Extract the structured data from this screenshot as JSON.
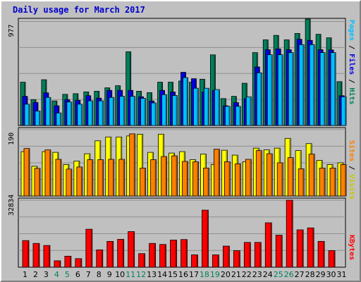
{
  "title": "Daily usage for March 2017",
  "colors": {
    "hits": "#00805c",
    "files": "#0000e6",
    "pages": "#00c0ff",
    "visits": "#ffff00",
    "sites": "#ff8000",
    "kbytes": "#ff0000",
    "weekday_label": "#000000",
    "weekend_label": "#00805c"
  },
  "chart_data": [
    {
      "type": "bar",
      "panel": "hits-files-pages",
      "categories": [
        "1",
        "2",
        "3",
        "4",
        "5",
        "6",
        "7",
        "8",
        "9",
        "10",
        "11",
        "12",
        "13",
        "14",
        "15",
        "16",
        "17",
        "18",
        "19",
        "20",
        "21",
        "22",
        "23",
        "24",
        "25",
        "26",
        "27",
        "28",
        "29",
        "30",
        "31"
      ],
      "weekend": [
        "4",
        "5",
        "11",
        "12",
        "18",
        "19",
        "25",
        "26"
      ],
      "ylim": [
        0,
        977
      ],
      "y_tick_label": "977",
      "series": [
        {
          "name": "Hits",
          "values": [
            407,
            243,
            430,
            231,
            293,
            299,
            316,
            322,
            354,
            374,
            693,
            322,
            309,
            407,
            407,
            418,
            407,
            435,
            664,
            253,
            274,
            397,
            685,
            805,
            847,
            805,
            865,
            1000,
            857,
            824,
            412
          ]
        },
        {
          "name": "Files",
          "values": [
            274,
            217,
            307,
            185,
            243,
            237,
            280,
            257,
            330,
            330,
            330,
            270,
            230,
            330,
            315,
            500,
            440,
            315,
            330,
            185,
            215,
            253,
            550,
            712,
            720,
            712,
            810,
            800,
            712,
            710,
            280
          ]
        },
        {
          "name": "Pages",
          "values": [
            200,
            136,
            264,
            118,
            221,
            200,
            232,
            231,
            264,
            274,
            274,
            255,
            212,
            290,
            282,
            450,
            350,
            350,
            338,
            180,
            180,
            270,
            495,
            665,
            665,
            685,
            760,
            760,
            685,
            685,
            270
          ]
        }
      ]
    },
    {
      "type": "bar",
      "panel": "visits-sites",
      "categories": [
        "1",
        "2",
        "3",
        "4",
        "5",
        "6",
        "7",
        "8",
        "9",
        "10",
        "11",
        "12",
        "13",
        "14",
        "15",
        "16",
        "17",
        "18",
        "19",
        "20",
        "21",
        "22",
        "23",
        "24",
        "25",
        "26",
        "27",
        "28",
        "29",
        "30",
        "31"
      ],
      "ylim": [
        0,
        190
      ],
      "y_tick_label": "190",
      "series": [
        {
          "name": "Visits",
          "values": [
            127,
            85,
            127,
            125,
            90,
            100,
            121,
            158,
            169,
            169,
            172,
            177,
            125,
            177,
            123,
            127,
            104,
            120,
            90,
            131,
            117,
            98,
            137,
            132,
            137,
            165,
            130,
            150,
            102,
            90,
            95
          ]
        },
        {
          "name": "Sites",
          "values": [
            136,
            79,
            132,
            105,
            77,
            83,
            104,
            104,
            105,
            105,
            178,
            80,
            104,
            113,
            115,
            99,
            98,
            80,
            134,
            98,
            92,
            105,
            130,
            121,
            95,
            110,
            78,
            120,
            80,
            80,
            90
          ]
        }
      ]
    },
    {
      "type": "bar",
      "panel": "kbytes",
      "categories": [
        "1",
        "2",
        "3",
        "4",
        "5",
        "6",
        "7",
        "8",
        "9",
        "10",
        "11",
        "12",
        "13",
        "14",
        "15",
        "16",
        "17",
        "18",
        "19",
        "20",
        "21",
        "22",
        "23",
        "24",
        "25",
        "26",
        "27",
        "28",
        "29",
        "30",
        "31"
      ],
      "ylim": [
        0,
        32834
      ],
      "y_tick_label": "32834",
      "series": [
        {
          "name": "KBytes",
          "values": [
            13050,
            11650,
            10650,
            3150,
            5400,
            4200,
            18600,
            8500,
            12650,
            13650,
            17450,
            6650,
            11650,
            11150,
            13300,
            13550,
            6050,
            27950,
            6050,
            10350,
            8100,
            12150,
            12150,
            21750,
            15700,
            32834,
            18300,
            19250,
            12650,
            8150,
            0
          ]
        }
      ]
    }
  ],
  "right_labels": {
    "pages": "Pages",
    "files": "Files",
    "hits": "Hits",
    "sep": " / ",
    "sites": "Sites",
    "visits": "Visits",
    "kbytes": "KBytes"
  }
}
